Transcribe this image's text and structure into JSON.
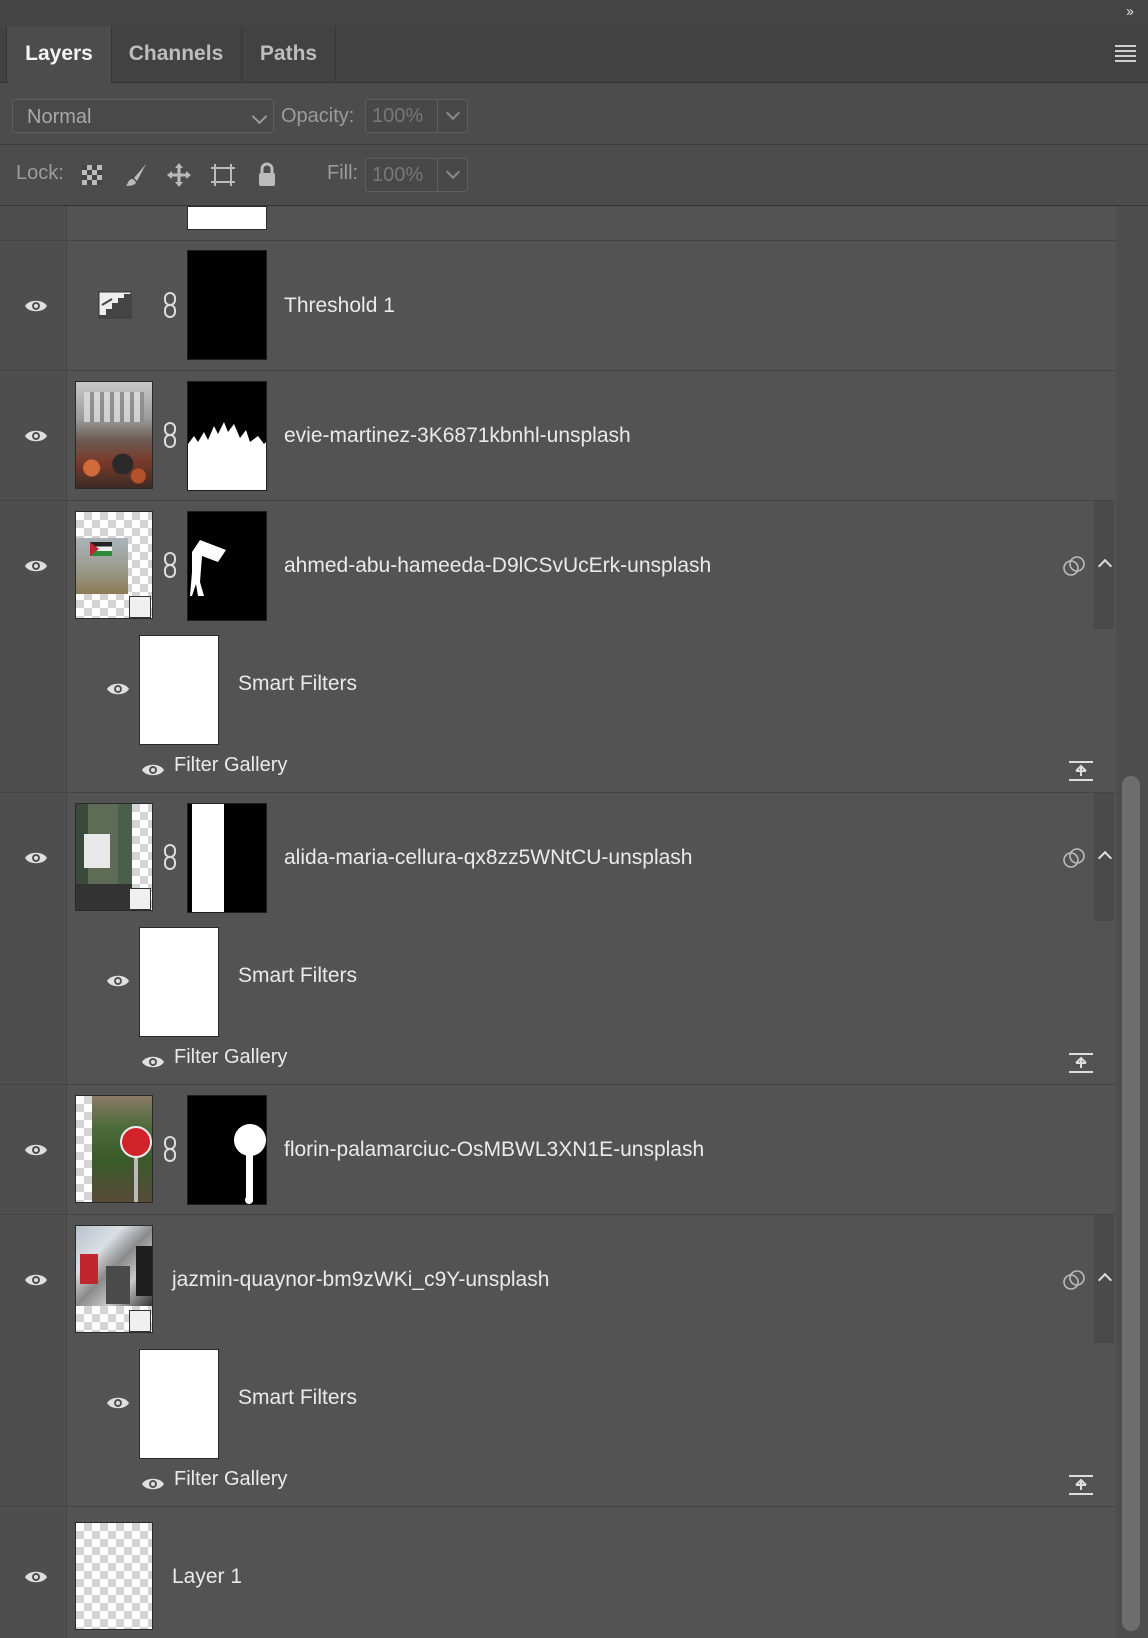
{
  "panel": {
    "collapse_glyph": "››",
    "tabs": [
      {
        "label": "Layers",
        "active": true
      },
      {
        "label": "Channels",
        "active": false
      },
      {
        "label": "Paths",
        "active": false
      }
    ],
    "menu_icon": "panel-menu-icon"
  },
  "blend": {
    "mode": "Normal",
    "opacity_label": "Opacity:",
    "opacity_value": "100%"
  },
  "lock": {
    "label": "Lock:",
    "icons": [
      "lock-transparent-pixels-icon",
      "lock-image-pixels-icon",
      "lock-position-icon",
      "lock-artboard-icon",
      "lock-all-icon"
    ],
    "fill_label": "Fill:",
    "fill_value": "100%"
  },
  "layers": [
    {
      "name": "Threshold 1",
      "type": "adjustment",
      "visible": true
    },
    {
      "name": "evie-martinez-3K6871kbnhl-unsplash",
      "type": "image-with-mask",
      "visible": true
    },
    {
      "name": "ahmed-abu-hameeda-D9lCSvUcErk-unsplash",
      "type": "smart-object-with-mask",
      "visible": true,
      "smart_filters": {
        "label": "Smart Filters",
        "filters": [
          "Filter Gallery"
        ]
      }
    },
    {
      "name": "alida-maria-cellura-qx8zz5WNtCU-unsplash",
      "type": "smart-object-with-mask",
      "visible": true,
      "smart_filters": {
        "label": "Smart Filters",
        "filters": [
          "Filter Gallery"
        ]
      }
    },
    {
      "name": "florin-palamarciuc-OsMBWL3XN1E-unsplash",
      "type": "image-with-mask",
      "visible": true
    },
    {
      "name": "jazmin-quaynor-bm9zWKi_c9Y-unsplash",
      "type": "smart-object",
      "visible": true,
      "smart_filters": {
        "label": "Smart Filters",
        "filters": [
          "Filter Gallery"
        ]
      }
    },
    {
      "name": "Layer 1",
      "type": "pixel",
      "visible": true
    }
  ],
  "colors": {
    "panel_bg": "#535353",
    "header_bg": "#424242",
    "text": "#eaeaea"
  }
}
